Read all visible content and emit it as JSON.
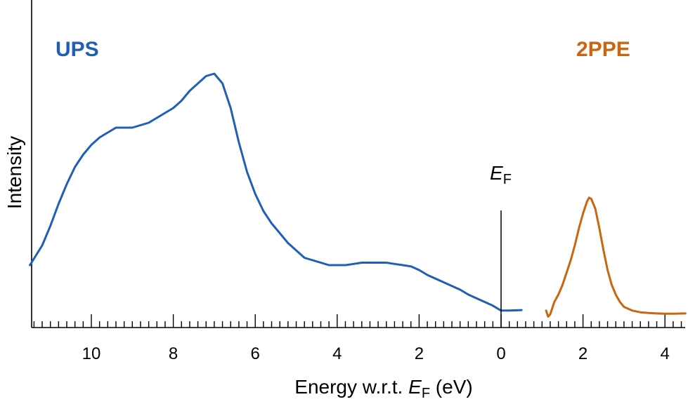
{
  "chart_data": {
    "type": "line",
    "xlabel_main": "Energy w.r.t. ",
    "xlabel_italic": "E",
    "xlabel_sub": "F",
    "xlabel_unit": " (eV)",
    "ylabel": "Intensity",
    "marker_label": "E",
    "marker_sub": "F",
    "grid": false,
    "legend": "none",
    "panels": [
      {
        "name": "UPS",
        "color": "#1f5fb4",
        "x_axis_reversed": true,
        "xlim": [
          11.5,
          0.5
        ],
        "ticks": [
          10,
          8,
          6,
          4,
          2,
          0
        ],
        "tick_labels": [
          "10",
          "8",
          "6",
          "4",
          "2",
          "0"
        ],
        "fermi_marker_x": 0,
        "x": [
          11.5,
          11.2,
          11.0,
          10.8,
          10.6,
          10.4,
          10.2,
          10.0,
          9.8,
          9.6,
          9.4,
          9.2,
          9.0,
          8.8,
          8.6,
          8.4,
          8.2,
          8.0,
          7.8,
          7.6,
          7.4,
          7.2,
          7.0,
          6.8,
          6.6,
          6.4,
          6.2,
          6.0,
          5.8,
          5.6,
          5.4,
          5.2,
          5.0,
          4.8,
          4.6,
          4.4,
          4.2,
          4.0,
          3.8,
          3.6,
          3.4,
          3.2,
          3.0,
          2.8,
          2.6,
          2.4,
          2.2,
          2.0,
          1.8,
          1.6,
          1.4,
          1.2,
          1.0,
          0.8,
          0.6,
          0.4,
          0.2,
          0.0,
          0.2,
          0.5
        ],
        "y": [
          0.12,
          0.2,
          0.28,
          0.37,
          0.45,
          0.52,
          0.57,
          0.61,
          0.64,
          0.66,
          0.68,
          0.68,
          0.68,
          0.69,
          0.7,
          0.72,
          0.74,
          0.76,
          0.79,
          0.83,
          0.86,
          0.89,
          0.9,
          0.86,
          0.76,
          0.62,
          0.5,
          0.41,
          0.34,
          0.29,
          0.25,
          0.21,
          0.18,
          0.15,
          0.14,
          0.13,
          0.12,
          0.12,
          0.12,
          0.125,
          0.13,
          0.13,
          0.13,
          0.13,
          0.125,
          0.12,
          0.115,
          0.1,
          0.08,
          0.065,
          0.05,
          0.035,
          0.02,
          0.0,
          -0.015,
          -0.03,
          -0.045,
          -0.065,
          -0.065,
          -0.063
        ]
      },
      {
        "name": "2PPE",
        "color": "#c9660f",
        "x_axis_reversed": false,
        "xlim": [
          0.5,
          4.5
        ],
        "ticks": [
          2,
          4
        ],
        "tick_labels": [
          "2",
          "4"
        ],
        "x": [
          1.1,
          1.15,
          1.2,
          1.3,
          1.4,
          1.5,
          1.6,
          1.7,
          1.8,
          1.9,
          2.0,
          2.1,
          2.15,
          2.2,
          2.3,
          2.4,
          2.5,
          2.6,
          2.7,
          2.8,
          2.9,
          3.0,
          3.2,
          3.4,
          3.6,
          3.8,
          4.0,
          4.2,
          4.5
        ],
        "y": [
          -0.065,
          -0.09,
          -0.08,
          -0.03,
          0.0,
          0.04,
          0.09,
          0.14,
          0.2,
          0.27,
          0.33,
          0.38,
          0.395,
          0.39,
          0.35,
          0.27,
          0.18,
          0.1,
          0.04,
          0.0,
          -0.03,
          -0.05,
          -0.065,
          -0.072,
          -0.075,
          -0.077,
          -0.078,
          -0.078,
          -0.077
        ]
      }
    ]
  }
}
